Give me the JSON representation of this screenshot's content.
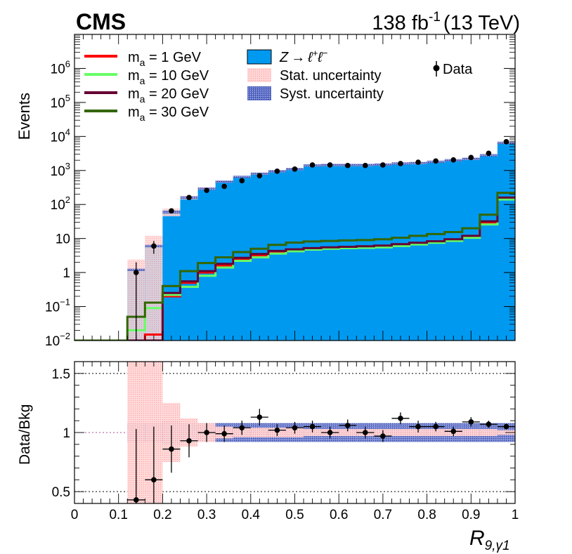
{
  "chart_data": {
    "type": "histogram",
    "experiment": "CMS",
    "lumi": "138 fb",
    "lumi_exponent": "-1",
    "energy": "(13 TeV)",
    "xlabel_main": "R",
    "xlabel_sub": "9,γ1",
    "upper": {
      "ylabel": "Events",
      "yscale": "log",
      "ylim": [
        0.01,
        10000000
      ],
      "ytick_labels": [
        {
          "value": 0.01,
          "base": "10",
          "exp": "−2"
        },
        {
          "value": 0.1,
          "base": "10",
          "exp": "−1"
        },
        {
          "value": 1,
          "base": "1",
          "exp": ""
        },
        {
          "value": 10,
          "base": "10",
          "exp": ""
        },
        {
          "value": 100,
          "base": "10",
          "exp": "2"
        },
        {
          "value": 1000,
          "base": "10",
          "exp": "3"
        },
        {
          "value": 10000,
          "base": "10",
          "exp": "4"
        },
        {
          "value": 100000,
          "base": "10",
          "exp": "5"
        },
        {
          "value": 1000000,
          "base": "10",
          "exp": "6"
        }
      ]
    },
    "lower": {
      "ylabel": "Data/Bkg",
      "ylim": [
        0.4,
        1.6
      ],
      "ytick_labels": [
        "0.5",
        "1",
        "1.5"
      ],
      "yticks": [
        0.5,
        1.0,
        1.5
      ]
    },
    "xlim": [
      0,
      1
    ],
    "xtick_labels": [
      "0",
      "0.1",
      "0.2",
      "0.3",
      "0.4",
      "0.5",
      "0.6",
      "0.7",
      "0.8",
      "0.9",
      "1"
    ],
    "xticks": [
      0,
      0.1,
      0.2,
      0.3,
      0.4,
      0.5,
      0.6,
      0.7,
      0.8,
      0.9,
      1.0
    ],
    "bin_edges": [
      0,
      0.04,
      0.08,
      0.12,
      0.16,
      0.2,
      0.24,
      0.28,
      0.32,
      0.36,
      0.4,
      0.44,
      0.48,
      0.52,
      0.56,
      0.6,
      0.64,
      0.68,
      0.72,
      0.76,
      0.8,
      0.84,
      0.88,
      0.92,
      0.96,
      1.0
    ],
    "background": {
      "name": "Z → ℓ⁺ℓ⁻",
      "color": "#0099f0",
      "values": [
        0,
        0,
        0,
        1.2,
        6,
        60,
        160,
        290,
        470,
        650,
        800,
        950,
        1100,
        1400,
        1450,
        1450,
        1450,
        1500,
        1600,
        1650,
        1800,
        2000,
        2200,
        2800,
        6500
      ],
      "stat_unc_rel": [
        0,
        0,
        0,
        1.0,
        1.0,
        0.25,
        0.12,
        0.08,
        0.05,
        0.04,
        0.04,
        0.04,
        0.04,
        0.03,
        0.03,
        0.03,
        0.03,
        0.03,
        0.03,
        0.03,
        0.03,
        0.03,
        0.03,
        0.03,
        0.02
      ],
      "syst_unc_rel": [
        0,
        0,
        0,
        0.08,
        0.08,
        0.1,
        0.08,
        0.08,
        0.08,
        0.08,
        0.08,
        0.08,
        0.08,
        0.08,
        0.08,
        0.08,
        0.08,
        0.08,
        0.08,
        0.08,
        0.08,
        0.08,
        0.08,
        0.08,
        0.08
      ]
    },
    "signals": [
      {
        "name": "m",
        "sub": "a",
        "suffix": " = 1 GeV",
        "color": "#ff0000",
        "values": [
          0,
          0,
          0,
          0,
          0.015,
          0.2,
          0.5,
          1.0,
          1.6,
          2.5,
          3.2,
          4.0,
          4.5,
          5.0,
          5.2,
          5.4,
          5.5,
          5.7,
          6.2,
          7.0,
          7.8,
          9.0,
          11,
          28,
          150
        ]
      },
      {
        "name": "m",
        "sub": "a",
        "suffix": " = 10 GeV",
        "color": "#66ff66",
        "values": [
          0,
          0,
          0,
          0.02,
          0.09,
          0.22,
          0.38,
          0.8,
          1.4,
          2.2,
          2.8,
          3.6,
          4.2,
          4.7,
          5.0,
          5.2,
          5.3,
          5.5,
          6.0,
          6.7,
          7.5,
          8.5,
          10.5,
          26,
          140
        ]
      },
      {
        "name": "m",
        "sub": "a",
        "suffix": " = 20 GeV",
        "color": "#660033",
        "values": [
          0,
          0,
          0,
          0,
          0.01,
          0.25,
          0.55,
          1.1,
          1.8,
          2.7,
          3.5,
          4.3,
          4.8,
          5.2,
          5.5,
          5.7,
          5.9,
          6.2,
          6.8,
          7.5,
          8.3,
          9.5,
          12,
          32,
          160
        ]
      },
      {
        "name": "m",
        "sub": "a",
        "suffix": " = 30 GeV",
        "color": "#336600",
        "values": [
          0,
          0,
          0,
          0.05,
          0.13,
          0.4,
          1.1,
          1.9,
          2.8,
          4.0,
          5.0,
          6.5,
          7.6,
          8.2,
          8.5,
          8.8,
          9.0,
          9.5,
          10.5,
          12,
          13.5,
          15.5,
          20,
          50,
          220
        ]
      }
    ],
    "data": {
      "name": "Data",
      "values": [
        0,
        0,
        0,
        1,
        6,
        65,
        160,
        260,
        340,
        500,
        700,
        950,
        1100,
        1450,
        1450,
        1400,
        1400,
        1450,
        1600,
        1750,
        1900,
        2050,
        2400,
        3200,
        7000
      ]
    },
    "ratio": {
      "values": [
        null,
        null,
        null,
        0.43,
        0.6,
        0.86,
        0.93,
        1.0,
        0.99,
        1.04,
        1.13,
        1.02,
        1.04,
        1.05,
        1.0,
        1.06,
        1.0,
        0.97,
        1.12,
        1.05,
        1.05,
        1.01,
        1.09,
        1.07,
        1.05
      ],
      "errors": [
        null,
        null,
        null,
        0.6,
        0.45,
        0.2,
        0.14,
        0.08,
        0.07,
        0.06,
        0.07,
        0.05,
        0.05,
        0.05,
        0.05,
        0.05,
        0.05,
        0.05,
        0.05,
        0.05,
        0.04,
        0.04,
        0.04,
        0.03,
        0.02
      ]
    },
    "legend": {
      "stat_label": "Stat. uncertainty",
      "syst_label": "Syst. uncertainty",
      "bkg_label_main": "Z → ℓ",
      "bkg_label_sup1": "+",
      "bkg_label_mid": "ℓ",
      "bkg_label_sup2": "−"
    }
  }
}
